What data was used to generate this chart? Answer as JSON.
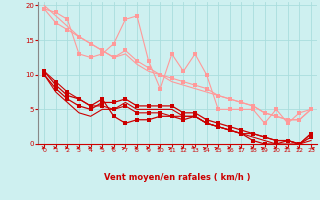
{
  "bg_color": "#cef0f0",
  "grid_color": "#aadddd",
  "line_color_dark": "#cc0000",
  "line_color_light": "#ff9999",
  "xlabel": "Vent moyen/en rafales ( km/h )",
  "xlabel_color": "#cc0000",
  "xlim_min": -0.5,
  "xlim_max": 23.5,
  "ylim_min": 0,
  "ylim_max": 20.5,
  "yticks": [
    0,
    5,
    10,
    15,
    20
  ],
  "xticks": [
    0,
    1,
    2,
    3,
    4,
    5,
    6,
    7,
    8,
    9,
    10,
    11,
    12,
    13,
    14,
    15,
    16,
    17,
    18,
    19,
    20,
    21,
    22,
    23
  ],
  "line1_x": [
    0,
    1,
    2,
    3,
    4,
    5,
    6,
    7,
    8,
    9,
    10,
    11,
    12,
    13,
    14,
    15,
    16,
    17,
    18,
    19,
    20,
    21,
    22,
    23
  ],
  "line1_y": [
    19.5,
    19.0,
    18.0,
    13.0,
    12.5,
    13.0,
    14.5,
    18.0,
    18.5,
    12.0,
    8.0,
    13.0,
    10.5,
    13.0,
    10.0,
    5.0,
    5.0,
    5.0,
    5.0,
    3.0,
    5.0,
    3.0,
    4.5,
    5.0
  ],
  "line2_x": [
    0,
    1,
    2,
    3,
    4,
    5,
    6,
    7,
    8,
    9,
    10,
    11,
    12,
    13,
    14,
    15,
    16,
    17,
    18,
    19,
    20,
    21,
    22,
    23
  ],
  "line2_y": [
    19.5,
    17.5,
    16.5,
    15.5,
    14.5,
    13.5,
    12.5,
    13.5,
    12.0,
    11.0,
    10.0,
    9.5,
    9.0,
    8.5,
    8.0,
    7.0,
    6.5,
    6.0,
    5.5,
    4.5,
    4.0,
    3.5,
    3.5,
    5.0
  ],
  "line3_x": [
    0,
    1,
    2,
    3,
    4,
    5,
    6,
    7,
    8,
    9,
    10,
    11,
    12,
    13,
    14,
    15,
    16,
    17,
    18,
    19,
    20,
    21,
    22,
    23
  ],
  "line3_y": [
    20.0,
    18.5,
    17.0,
    15.5,
    14.5,
    13.5,
    12.5,
    13.0,
    11.5,
    10.5,
    10.0,
    9.0,
    8.5,
    8.0,
    7.5,
    7.0,
    6.5,
    6.0,
    5.5,
    4.5,
    4.0,
    3.5,
    3.5,
    5.0
  ],
  "line4_x": [
    0,
    1,
    2,
    3,
    4,
    5,
    6,
    7,
    8,
    9,
    10,
    11,
    12,
    13,
    14,
    15,
    16,
    17,
    18,
    19,
    20,
    21,
    22,
    23
  ],
  "line4_y": [
    10.5,
    8.5,
    7.0,
    6.5,
    5.5,
    6.5,
    4.0,
    3.0,
    3.5,
    3.5,
    4.0,
    4.0,
    3.5,
    4.0,
    3.0,
    2.5,
    2.0,
    1.5,
    0.5,
    0.0,
    0.0,
    0.5,
    0.0,
    1.5
  ],
  "line5_x": [
    0,
    1,
    2,
    3,
    4,
    5,
    6,
    7,
    8,
    9,
    10,
    11,
    12,
    13,
    14,
    15,
    16,
    17,
    18,
    19,
    20,
    21,
    22,
    23
  ],
  "line5_y": [
    10.0,
    8.0,
    6.5,
    5.5,
    5.0,
    6.0,
    6.0,
    6.5,
    5.5,
    5.5,
    5.5,
    5.5,
    4.5,
    4.5,
    3.5,
    3.0,
    2.5,
    2.0,
    1.5,
    1.0,
    0.5,
    0.5,
    0.0,
    1.0
  ],
  "line6_x": [
    0,
    1,
    2,
    3,
    4,
    5,
    6,
    7,
    8,
    9,
    10,
    11,
    12,
    13,
    14,
    15,
    16,
    17,
    18,
    19,
    20,
    21,
    22,
    23
  ],
  "line6_y": [
    10.0,
    7.5,
    6.0,
    4.5,
    4.0,
    5.0,
    5.0,
    6.0,
    5.0,
    5.0,
    5.0,
    5.0,
    4.0,
    4.0,
    3.0,
    2.5,
    2.0,
    1.5,
    1.0,
    0.5,
    0.0,
    0.0,
    0.0,
    0.5
  ],
  "line7_x": [
    0,
    1,
    2,
    3,
    4,
    5,
    6,
    7,
    8,
    9,
    10,
    11,
    12,
    13,
    14,
    15,
    16,
    17,
    18,
    19,
    20,
    21,
    22,
    23
  ],
  "line7_y": [
    10.5,
    9.0,
    7.5,
    6.5,
    5.5,
    5.5,
    5.0,
    5.5,
    4.5,
    4.5,
    4.5,
    4.0,
    4.0,
    4.0,
    3.0,
    2.5,
    2.0,
    1.5,
    1.5,
    1.0,
    0.5,
    0.5,
    0.0,
    1.5
  ],
  "arrows_x": [
    0,
    1,
    2,
    3,
    4,
    5,
    6,
    7,
    8,
    9,
    10,
    11,
    12,
    13,
    14,
    15,
    16,
    17,
    18,
    19,
    20,
    21,
    22,
    23
  ],
  "arrows_angles_deg": [
    0,
    0,
    0,
    0,
    0,
    0,
    0,
    45,
    0,
    0,
    0,
    45,
    0,
    -45,
    45,
    45,
    0,
    0,
    0,
    45,
    0,
    0,
    0,
    135
  ]
}
